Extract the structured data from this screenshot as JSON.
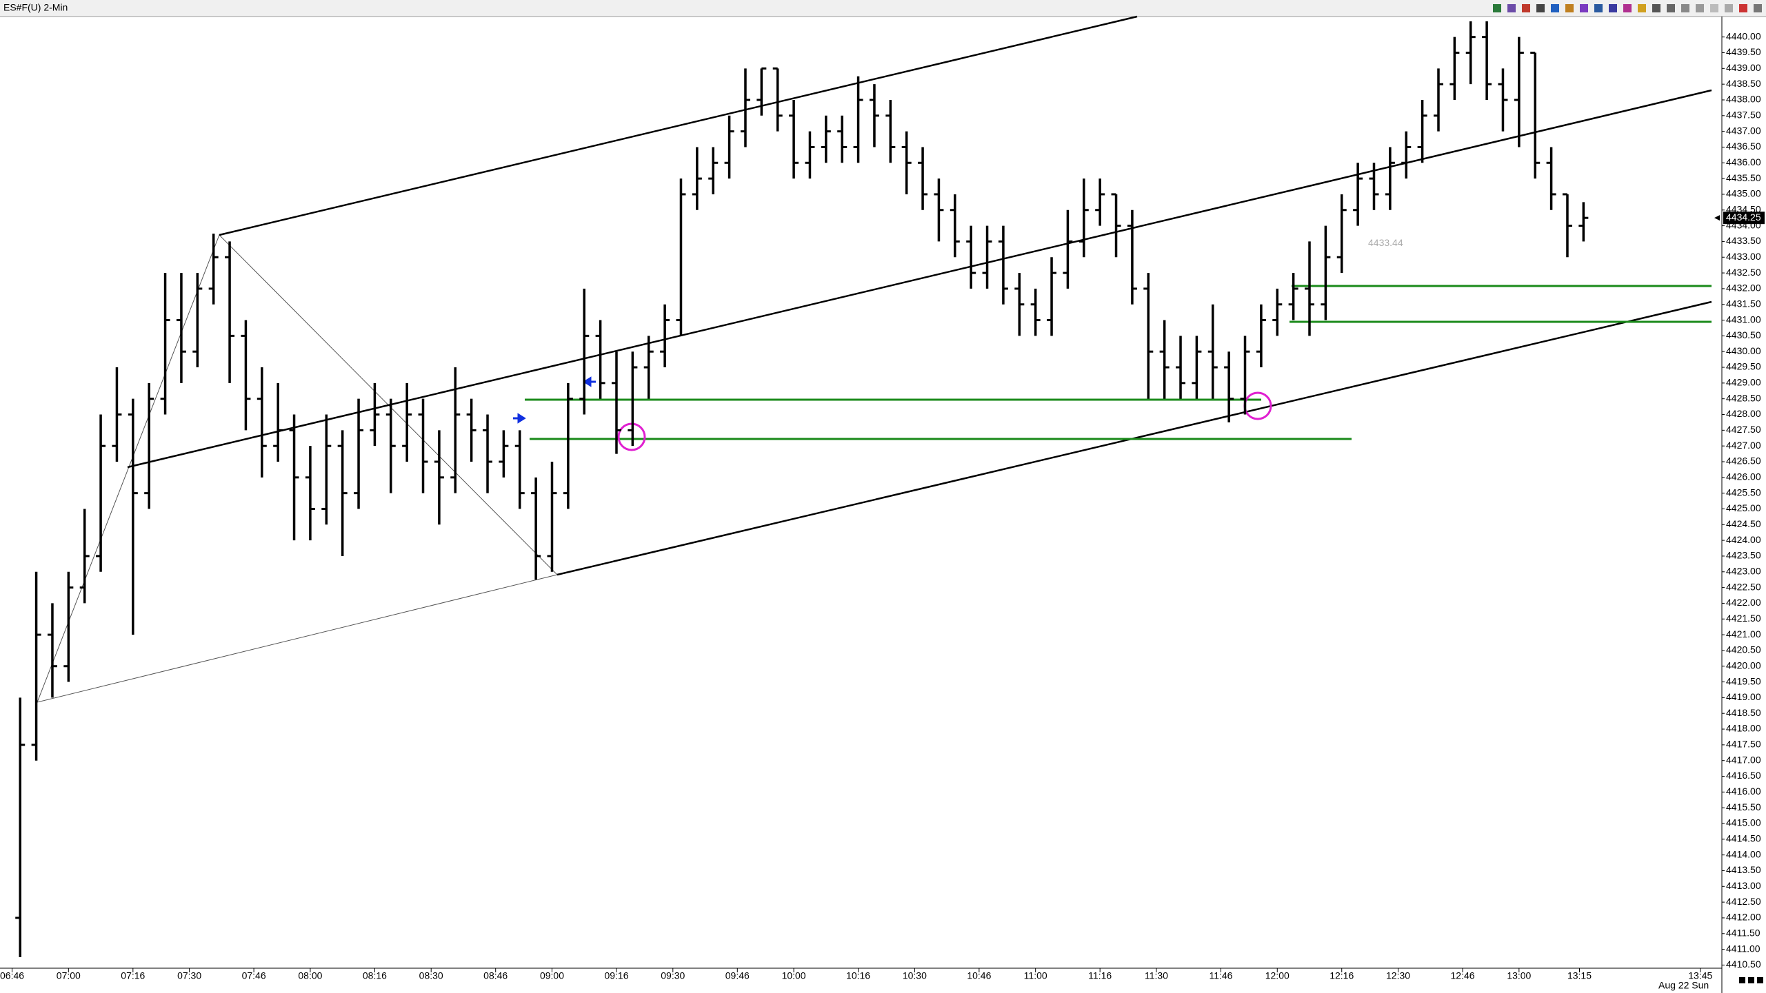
{
  "chart_data": {
    "type": "ohlc",
    "title": "ES#F(U) 2-Min",
    "date_label": "Aug 22 Sun",
    "color": "#000000",
    "x": [
      "06:48",
      "06:52",
      "06:56",
      "07:00",
      "07:04",
      "07:08",
      "07:12",
      "07:16",
      "07:20",
      "07:24",
      "07:28",
      "07:32",
      "07:36",
      "07:40",
      "07:44",
      "07:48",
      "07:52",
      "07:56",
      "08:00",
      "08:04",
      "08:08",
      "08:12",
      "08:16",
      "08:20",
      "08:24",
      "08:28",
      "08:32",
      "08:36",
      "08:40",
      "08:44",
      "08:48",
      "08:52",
      "08:56",
      "09:00",
      "09:04",
      "09:08",
      "09:12",
      "09:16",
      "09:20",
      "09:24",
      "09:28",
      "09:32",
      "09:36",
      "09:40",
      "09:44",
      "09:48",
      "09:52",
      "09:56",
      "10:00",
      "10:04",
      "10:08",
      "10:12",
      "10:16",
      "10:20",
      "10:24",
      "10:28",
      "10:32",
      "10:36",
      "10:40",
      "10:44",
      "10:48",
      "10:52",
      "10:56",
      "11:00",
      "11:04",
      "11:08",
      "11:12",
      "11:16",
      "11:20",
      "11:24",
      "11:28",
      "11:32",
      "11:36",
      "11:40",
      "11:44",
      "11:48",
      "11:52",
      "11:56",
      "12:00",
      "12:04",
      "12:08",
      "12:12",
      "12:16",
      "12:20",
      "12:24",
      "12:28",
      "12:32",
      "12:36",
      "12:40",
      "12:44",
      "12:48",
      "12:52",
      "12:56",
      "13:00",
      "13:04",
      "13:08",
      "13:12",
      "13:16"
    ],
    "open": [
      4412.0,
      4417.5,
      4421,
      4420,
      4422.5,
      4423.5,
      4427,
      4428,
      4425.5,
      4428.5,
      4431,
      4430,
      4432,
      4433,
      4430.5,
      4428.5,
      4427,
      4427.5,
      4426,
      4425,
      4427,
      4425.5,
      4427.5,
      4428,
      4427,
      4428,
      4426.5,
      4426,
      4428,
      4427.5,
      4426.5,
      4427,
      4425.5,
      4423.5,
      4425.5,
      4428.5,
      4430.5,
      4429,
      4427.5,
      4429.5,
      4430,
      4431,
      4435,
      4435.5,
      4436,
      4437,
      4438,
      4439,
      4437.5,
      4436,
      4436.5,
      4437,
      4436.5,
      4438,
      4437.5,
      4436.5,
      4436,
      4435,
      4434.5,
      4433.5,
      4432.5,
      4433.5,
      4432,
      4431.5,
      4431,
      4432.5,
      4433.5,
      4434.5,
      4435,
      4434,
      4432,
      4430,
      4429.5,
      4429,
      4430,
      4429.5,
      4428.5,
      4430,
      4431,
      4431.5,
      4432,
      4431.5,
      4433,
      4434.5,
      4435.5,
      4435,
      4436,
      4436.5,
      4437.5,
      4438.5,
      4439.5,
      4440,
      4438.5,
      4438,
      4439.5,
      4436,
      4435,
      4434
    ],
    "high": [
      4419,
      4423,
      4422,
      4423,
      4425,
      4428,
      4429.5,
      4428.5,
      4429,
      4432.5,
      4432.5,
      4432.5,
      4433.75,
      4433.5,
      4431,
      4429.5,
      4429,
      4428,
      4427,
      4428,
      4427.5,
      4428.5,
      4429,
      4428.5,
      4429,
      4428.5,
      4427.5,
      4429.5,
      4428.5,
      4428,
      4427.5,
      4427.5,
      4426,
      4426.5,
      4429,
      4432,
      4431,
      4430,
      4430,
      4430.5,
      4431.5,
      4435.5,
      4436.5,
      4436.5,
      4437.5,
      4439,
      4439,
      4439,
      4438,
      4437,
      4437.5,
      4437.5,
      4438.75,
      4438.5,
      4438,
      4437,
      4436.5,
      4435.5,
      4435,
      4434,
      4434,
      4434,
      4432.5,
      4432,
      4433,
      4434.5,
      4435.5,
      4435.5,
      4435,
      4434.5,
      4432.5,
      4431,
      4430.5,
      4430.5,
      4431.5,
      4430,
      4430.5,
      4431.5,
      4432,
      4432.5,
      4433.5,
      4434,
      4435,
      4436,
      4436,
      4436.5,
      4437,
      4438,
      4439,
      4440,
      4440.5,
      4440.5,
      4439,
      4440,
      4439.5,
      4436.5,
      4435,
      4434.75
    ],
    "low": [
      4410.75,
      4417,
      4419,
      4419.5,
      4422,
      4423,
      4426.5,
      4421,
      4425,
      4428,
      4429,
      4429.5,
      4431.5,
      4429,
      4427.5,
      4426,
      4426.5,
      4424,
      4424,
      4424.5,
      4423.5,
      4425,
      4427,
      4425.5,
      4426.5,
      4425.5,
      4424.5,
      4425.5,
      4426.5,
      4425.5,
      4426,
      4425,
      4422.75,
      4423,
      4425,
      4428,
      4428.5,
      4426.75,
      4427,
      4428.5,
      4429.5,
      4430.5,
      4434.5,
      4435,
      4435.5,
      4436.5,
      4437.5,
      4437,
      4435.5,
      4435.5,
      4436,
      4436,
      4436,
      4436.5,
      4436,
      4435,
      4434.5,
      4433.5,
      4433,
      4432,
      4432,
      4431.5,
      4430.5,
      4430.5,
      4430.5,
      4432,
      4433,
      4434,
      4433,
      4431.5,
      4428.5,
      4428.5,
      4428.5,
      4428.5,
      4428.5,
      4427.75,
      4428,
      4429.5,
      4430.5,
      4431,
      4430.5,
      4431,
      4432.5,
      4434,
      4434.5,
      4434.5,
      4435.5,
      4436,
      4437,
      4438,
      4438.5,
      4438,
      4437,
      4436.5,
      4435.5,
      4434.5,
      4433,
      4433.5
    ],
    "close": [
      4417.5,
      4421,
      4420,
      4422.5,
      4423.5,
      4427,
      4428,
      4425.5,
      4428.5,
      4431,
      4430,
      4432,
      4433,
      4430.5,
      4428.5,
      4427,
      4427.5,
      4426,
      4425,
      4427,
      4425.5,
      4427.5,
      4428,
      4427,
      4428,
      4426.5,
      4426,
      4428,
      4427.5,
      4426.5,
      4427,
      4425.5,
      4423.5,
      4425.5,
      4428.5,
      4430.5,
      4429,
      4427.5,
      4429.5,
      4430,
      4431,
      4435,
      4435.5,
      4436,
      4437,
      4438,
      4439,
      4437.5,
      4436,
      4436.5,
      4437,
      4436.5,
      4438,
      4437.5,
      4436.5,
      4436,
      4435,
      4434.5,
      4433.5,
      4432.5,
      4433.5,
      4432,
      4431.5,
      4431,
      4432.5,
      4433.5,
      4434.5,
      4435,
      4434,
      4432,
      4430,
      4429.5,
      4429,
      4430,
      4429.5,
      4428.5,
      4430,
      4431,
      4431.5,
      4432,
      4431.5,
      4433,
      4434.5,
      4435.5,
      4435,
      4436,
      4436.5,
      4437.5,
      4438.5,
      4439.5,
      4440,
      4438.5,
      4438,
      4439.5,
      4436,
      4435,
      4434,
      4434.25
    ],
    "last_price": {
      "value": 4434.25,
      "label": "4434.25"
    },
    "price_note": {
      "value": 4433.44,
      "label": "4433.44"
    },
    "xlim": [
      "06:43",
      "13:50"
    ],
    "xticks": [
      "06:46",
      "07:00",
      "07:16",
      "07:30",
      "07:46",
      "08:00",
      "08:16",
      "08:30",
      "08:46",
      "09:00",
      "09:16",
      "09:30",
      "09:46",
      "10:00",
      "10:16",
      "10:30",
      "10:46",
      "11:00",
      "11:16",
      "11:30",
      "11:46",
      "12:00",
      "12:16",
      "12:30",
      "12:46",
      "13:00",
      "13:15",
      "13:45"
    ],
    "ylim": [
      4410.4,
      4440.65
    ],
    "yticks": [
      {
        "value": 4410.5,
        "label": "4410.50"
      },
      {
        "value": 4411,
        "label": "4411.00"
      },
      {
        "value": 4411.5,
        "label": "4411.50"
      },
      {
        "value": 4412,
        "label": "4412.00"
      },
      {
        "value": 4412.5,
        "label": "4412.50"
      },
      {
        "value": 4413,
        "label": "4413.00"
      },
      {
        "value": 4413.5,
        "label": "4413.50"
      },
      {
        "value": 4414,
        "label": "4414.00"
      },
      {
        "value": 4414.5,
        "label": "4414.50"
      },
      {
        "value": 4415,
        "label": "4415.00"
      },
      {
        "value": 4415.5,
        "label": "4415.50"
      },
      {
        "value": 4416,
        "label": "4416.00"
      },
      {
        "value": 4416.5,
        "label": "4416.50"
      },
      {
        "value": 4417,
        "label": "4417.00"
      },
      {
        "value": 4417.5,
        "label": "4417.50"
      },
      {
        "value": 4418,
        "label": "4418.00"
      },
      {
        "value": 4418.5,
        "label": "4418.50"
      },
      {
        "value": 4419,
        "label": "4419.00"
      },
      {
        "value": 4419.5,
        "label": "4419.50"
      },
      {
        "value": 4420,
        "label": "4420.00"
      },
      {
        "value": 4420.5,
        "label": "4420.50"
      },
      {
        "value": 4421,
        "label": "4421.00"
      },
      {
        "value": 4421.5,
        "label": "4421.50"
      },
      {
        "value": 4422,
        "label": "4422.00"
      },
      {
        "value": 4422.5,
        "label": "4422.50"
      },
      {
        "value": 4423,
        "label": "4423.00"
      },
      {
        "value": 4423.5,
        "label": "4423.50"
      },
      {
        "value": 4424,
        "label": "4424.00"
      },
      {
        "value": 4424.5,
        "label": "4424.50"
      },
      {
        "value": 4425,
        "label": "4425.00"
      },
      {
        "value": 4425.5,
        "label": "4425.50"
      },
      {
        "value": 4426,
        "label": "4426.00"
      },
      {
        "value": 4426.5,
        "label": "4426.50"
      },
      {
        "value": 4427,
        "label": "4427.00"
      },
      {
        "value": 4427.5,
        "label": "4427.50"
      },
      {
        "value": 4428,
        "label": "4428.00"
      },
      {
        "value": 4428.5,
        "label": "4428.50"
      },
      {
        "value": 4429,
        "label": "4429.00"
      },
      {
        "value": 4429.5,
        "label": "4429.50"
      },
      {
        "value": 4430,
        "label": "4430.00"
      },
      {
        "value": 4430.5,
        "label": "4430.50"
      },
      {
        "value": 4431,
        "label": "4431.00"
      },
      {
        "value": 4431.5,
        "label": "4431.50"
      },
      {
        "value": 4432,
        "label": "4432.00"
      },
      {
        "value": 4432.5,
        "label": "4432.50"
      },
      {
        "value": 4433,
        "label": "4433.00"
      },
      {
        "value": 4433.5,
        "label": "4433.50"
      },
      {
        "value": 4434,
        "label": "4434.00"
      },
      {
        "value": 4434.5,
        "label": "4434.50"
      },
      {
        "value": 4435,
        "label": "4435.00"
      },
      {
        "value": 4435.5,
        "label": "4435.50"
      },
      {
        "value": 4436,
        "label": "4436.00"
      },
      {
        "value": 4436.5,
        "label": "4436.50"
      },
      {
        "value": 4437,
        "label": "4437.00"
      },
      {
        "value": 4437.5,
        "label": "4437.50"
      },
      {
        "value": 4438,
        "label": "4438.00"
      },
      {
        "value": 4438.5,
        "label": "4438.50"
      },
      {
        "value": 4439,
        "label": "4439.00"
      },
      {
        "value": 4439.5,
        "label": "4439.50"
      },
      {
        "value": 4440,
        "label": "4440.00"
      }
    ],
    "grid": false
  }
}
